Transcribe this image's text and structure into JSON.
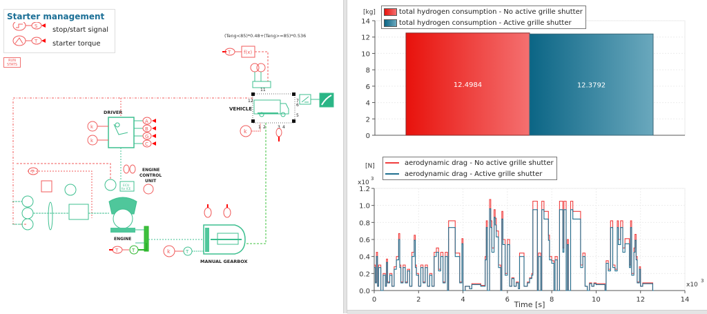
{
  "diagram": {
    "legend_title": "Starter management",
    "legend_items": [
      {
        "label": "stop/start signal",
        "icon": "step-signal-icon",
        "tag": "S"
      },
      {
        "label": "starter torque",
        "icon": "ramp-signal-icon",
        "tag": "T"
      }
    ],
    "run_stats_label_1": "RUN",
    "run_stats_label_2": "STATS",
    "formula": "(Teng<85)*0.48+(Teng>=85)*0.536",
    "fx_label": "f(x)",
    "labels": {
      "driver": "DRIVER",
      "vehicle": "VEHICLE",
      "engine": "ENGINE",
      "ecu_1": "ENGINE",
      "ecu_2": "CONTROL",
      "ecu_3": "UNIT",
      "ecu_box": "ECU",
      "ecu_box2": "for ICE",
      "gearbox": "MANUAL GEARBOX"
    },
    "ports": {
      "p11": "11",
      "p12": "12",
      "p7": "7",
      "p6": "6",
      "p5": "5",
      "p1": "1",
      "p2": "2",
      "p3": "3",
      "p4": "4"
    },
    "driver_outputs": [
      "A",
      "B",
      "G",
      "C"
    ],
    "k": "k",
    "t": "T",
    "colors": {
      "signal": "#f05a5a",
      "mechanical": "#3cbf8f",
      "gear": "#2bb52b"
    }
  },
  "chart_data": [
    {
      "type": "bar",
      "ylabel": "[kg]",
      "ylim": [
        0,
        14
      ],
      "yticks": [
        "0",
        "2",
        "4",
        "6",
        "8",
        "10",
        "12",
        "14"
      ],
      "grid": true,
      "legend_placement": "top-left",
      "series": [
        {
          "name": "total hydrogen consumption - No active grille shutter",
          "value": 12.4984,
          "label": "12.4984",
          "color": "#e8120c"
        },
        {
          "name": "total hydrogen consumption - Active grille shutter",
          "value": 12.3792,
          "label": "12.3792",
          "color": "#0b6585"
        }
      ]
    },
    {
      "type": "line",
      "ylabel": "[N]",
      "yscale_label": "x10",
      "yscale_exp": "3",
      "xscale_label": "x10",
      "xscale_exp": "3",
      "xlabel": "Time [s]",
      "xlim": [
        0,
        14
      ],
      "ylim": [
        0,
        1.2
      ],
      "xticks": [
        "0",
        "2",
        "4",
        "6",
        "8",
        "10",
        "12",
        "14"
      ],
      "yticks": [
        "0.0",
        "0.2",
        "0.4",
        "0.6",
        "0.8",
        "1.0",
        "1.2"
      ],
      "grid": true,
      "legend_placement": "top-left",
      "x": [
        0,
        0.05,
        0.1,
        0.15,
        0.2,
        0.3,
        0.4,
        0.5,
        0.55,
        0.6,
        0.7,
        0.8,
        0.9,
        1.0,
        1.1,
        1.15,
        1.2,
        1.3,
        1.4,
        1.5,
        1.6,
        1.7,
        1.8,
        1.85,
        1.9,
        2.0,
        2.1,
        2.2,
        2.3,
        2.4,
        2.5,
        2.6,
        2.7,
        2.8,
        2.9,
        3.0,
        3.1,
        3.2,
        3.3,
        3.35,
        3.65,
        3.85,
        3.95,
        4.0,
        4.1,
        4.3,
        4.4,
        4.8,
        5.0,
        5.05,
        5.1,
        5.2,
        5.25,
        5.3,
        5.4,
        5.45,
        5.5,
        5.6,
        5.7,
        5.75,
        5.8,
        5.9,
        6.0,
        6.1,
        6.2,
        6.3,
        6.4,
        6.5,
        6.55,
        6.75,
        6.9,
        7.0,
        7.1,
        7.15,
        7.35,
        7.4,
        7.5,
        7.55,
        7.65,
        7.85,
        7.9,
        8.0,
        8.1,
        8.15,
        8.25,
        8.35,
        8.5,
        8.55,
        8.65,
        8.7,
        8.75,
        8.85,
        8.95,
        9.3,
        9.4,
        9.5,
        9.6,
        9.7,
        9.8,
        9.9,
        10.0,
        10.4,
        10.45,
        10.55,
        10.65,
        10.75,
        10.85,
        10.95,
        11.0,
        11.1,
        11.2,
        11.3,
        11.5,
        11.55,
        11.6,
        11.7,
        11.75,
        11.8,
        11.85,
        11.95,
        12.0,
        12.1,
        12.55
      ],
      "series": [
        {
          "name": "aerodynamic drag - No active grille shutter",
          "color": "#f03c3c",
          "y": [
            0.3,
            0.1,
            0.45,
            0.05,
            0.3,
            0,
            0.2,
            0.05,
            0.37,
            0.1,
            0.2,
            0.05,
            0.28,
            0.4,
            0.67,
            0.3,
            0.1,
            0.3,
            0.1,
            0.25,
            0.05,
            0.45,
            0.65,
            0.3,
            0.2,
            0.05,
            0.3,
            0.1,
            0.3,
            0.05,
            0.2,
            0.05,
            0.45,
            0.5,
            0.25,
            0.45,
            0.1,
            0.45,
            0,
            0.82,
            0.44,
            0.1,
            0.61,
            0,
            0.05,
            0.02,
            0.08,
            0.06,
            0.4,
            0.82,
            0,
            1.07,
            0.82,
            0.5,
            0.95,
            0.85,
            0.7,
            0.3,
            0,
            0.93,
            0.6,
            0.2,
            0.6,
            0.05,
            0.15,
            0.05,
            0.1,
            0.02,
            0.44,
            0.05,
            0.1,
            0.15,
            0.2,
            1.05,
            0,
            0.44,
            0,
            1.05,
            0.93,
            0.65,
            0.4,
            0.35,
            0,
            0.4,
            0,
            1.05,
            0.5,
            1.05,
            0,
            0.6,
            0,
            1.05,
            0.93,
            0.3,
            0.44,
            0.05,
            0,
            0.09,
            0.05,
            0.09,
            0.08,
            0,
            0.35,
            0.25,
            0.82,
            0.3,
            0.25,
            0.82,
            0.6,
            0.82,
            0.5,
            0.61,
            0.3,
            0.82,
            0.2,
            0.5,
            0.66,
            0.4,
            0.1,
            0.28,
            0.05,
            0.09,
            0
          ]
        },
        {
          "name": "aerodynamic drag - Active grille shutter",
          "color": "#1f6f8f",
          "y": [
            0.27,
            0.09,
            0.4,
            0.05,
            0.27,
            0,
            0.18,
            0.05,
            0.33,
            0.09,
            0.18,
            0.05,
            0.25,
            0.36,
            0.6,
            0.27,
            0.09,
            0.27,
            0.09,
            0.23,
            0.05,
            0.4,
            0.59,
            0.27,
            0.18,
            0.05,
            0.27,
            0.09,
            0.27,
            0.05,
            0.18,
            0.05,
            0.4,
            0.45,
            0.23,
            0.4,
            0.09,
            0.4,
            0,
            0.74,
            0.4,
            0.09,
            0.55,
            0,
            0.05,
            0.02,
            0.07,
            0.05,
            0.36,
            0.74,
            0,
            0.96,
            0.74,
            0.45,
            0.86,
            0.77,
            0.63,
            0.27,
            0,
            0.84,
            0.54,
            0.18,
            0.54,
            0.05,
            0.14,
            0.05,
            0.09,
            0.02,
            0.4,
            0.05,
            0.09,
            0.14,
            0.18,
            0.95,
            0,
            0.4,
            0,
            0.95,
            0.84,
            0.59,
            0.36,
            0.32,
            0,
            0.36,
            0,
            0.95,
            0.45,
            0.95,
            0,
            0.54,
            0,
            0.95,
            0.84,
            0.27,
            0.4,
            0.05,
            0,
            0.08,
            0.05,
            0.08,
            0.07,
            0,
            0.32,
            0.23,
            0.74,
            0.27,
            0.23,
            0.74,
            0.54,
            0.74,
            0.45,
            0.55,
            0.27,
            0.74,
            0.18,
            0.45,
            0.59,
            0.36,
            0.09,
            0.25,
            0.05,
            0.08,
            0
          ]
        }
      ]
    }
  ]
}
